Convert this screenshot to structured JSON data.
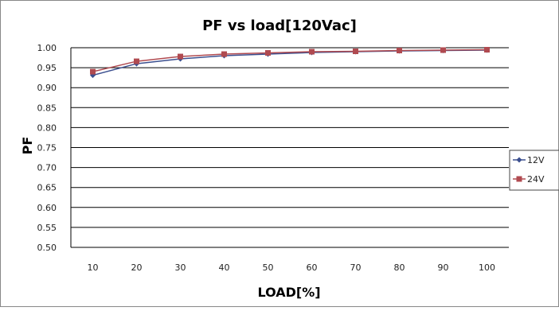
{
  "chart_data": {
    "type": "line",
    "title": "PF vs load[120Vac]",
    "xlabel": "LOAD[%]",
    "ylabel": "PF",
    "categories": [
      "10",
      "20",
      "30",
      "40",
      "50",
      "60",
      "70",
      "80",
      "90",
      "100"
    ],
    "ylim": [
      0.5,
      1.0
    ],
    "yticks": [
      "0.50",
      "0.55",
      "0.60",
      "0.65",
      "0.70",
      "0.75",
      "0.80",
      "0.85",
      "0.90",
      "0.95",
      "1.00"
    ],
    "grid": true,
    "legend_position": "right",
    "series": [
      {
        "name": "12V",
        "color": "#3b4f8f",
        "marker": "diamond",
        "values": [
          0.931,
          0.96,
          0.972,
          0.98,
          0.984,
          0.988,
          0.99,
          0.992,
          0.993,
          0.994
        ]
      },
      {
        "name": "24V",
        "color": "#b04a50",
        "marker": "square",
        "values": [
          0.94,
          0.966,
          0.978,
          0.984,
          0.987,
          0.99,
          0.991,
          0.993,
          0.994,
          0.995
        ]
      }
    ]
  }
}
